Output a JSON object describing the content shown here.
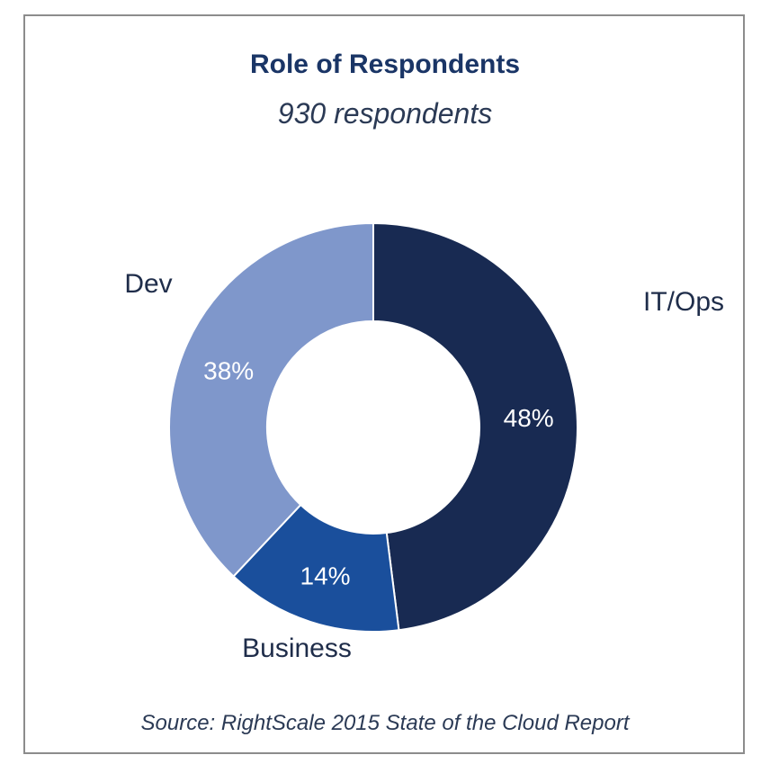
{
  "chart_data": {
    "type": "pie",
    "donut": true,
    "title": "Role of Respondents",
    "subtitle": "930 respondents",
    "source": "Source: RightScale 2015 State of the Cloud Report",
    "categories": [
      "IT/Ops",
      "Business",
      "Dev"
    ],
    "values": [
      48,
      14,
      38
    ],
    "value_labels": [
      "48%",
      "14%",
      "38%"
    ],
    "colors": [
      "#182a52",
      "#1a4f9c",
      "#7f97cb"
    ]
  }
}
